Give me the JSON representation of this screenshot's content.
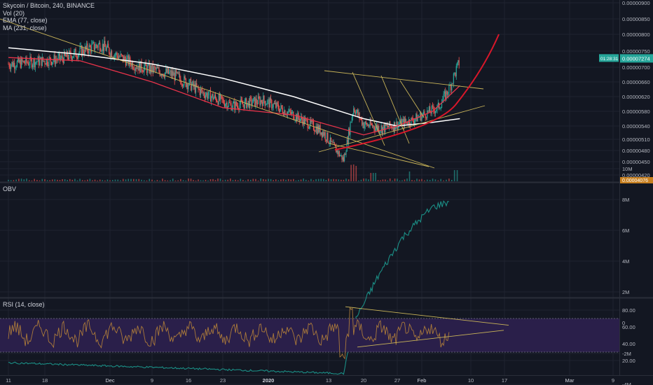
{
  "header": {
    "symbol_line": "Skycoin / Bitcoin, 240, BINANCE",
    "indicator_vol": "Vol (20)",
    "indicator_ema": "EMA (77, close)",
    "indicator_ma": "MA (231, close)"
  },
  "price_badge": {
    "price": "0.00007274",
    "countdown": "01:28:31",
    "low_marker": "0.00004076"
  },
  "colors": {
    "background": "#131722",
    "grid": "#1f2330",
    "text": "#b2b5be",
    "up": "#26a69a",
    "down": "#ef5350",
    "ema": "#e8334a",
    "ma": "#ffffff",
    "trendline": "#c9b458",
    "obv": "#1b8f86",
    "rsi": "#ab7a3a",
    "rsi_band": "#2a1f4a",
    "price_badge": "#26a69a"
  },
  "chart_data": [
    {
      "type": "candlestick",
      "title": "Skycoin / Bitcoin, 240, BINANCE",
      "ylim": [
        4.1e-06,
        9.2e-06
      ],
      "y_ticks": [
        "0.00000900",
        "0.00000850",
        "0.00000800",
        "0.00000750",
        "0.00000700",
        "0.00000660",
        "0.00000620",
        "0.00000580",
        "0.00000540",
        "0.00000510",
        "0.00000480",
        "0.00000450",
        "0.00000420"
      ],
      "x_tick_labels": [
        "11",
        "18",
        "Dec",
        "9",
        "16",
        "23",
        "2020",
        "13",
        "20",
        "27",
        "Feb",
        "10",
        "17",
        "Mar",
        "9"
      ],
      "series": [
        {
          "name": "EMA (77, close)",
          "x": [
            "Nov 11",
            "Nov 25",
            "Dec 9",
            "Dec 23",
            "Jan 6",
            "Jan 20",
            "Jan 27",
            "Feb 3",
            "Feb 8"
          ],
          "values": [
            7.3e-06,
            7.2e-06,
            6.6e-06,
            5.9e-06,
            5.7e-06,
            5.2e-06,
            5.4e-06,
            5.8e-06,
            6.5e-06
          ]
        },
        {
          "name": "MA (231, close)",
          "x": [
            "Nov 11",
            "Nov 25",
            "Dec 9",
            "Dec 23",
            "Jan 6",
            "Jan 20",
            "Jan 27",
            "Feb 3",
            "Feb 8"
          ],
          "values": [
            7.6e-06,
            7.4e-06,
            7.1e-06,
            6.7e-06,
            6.2e-06,
            5.6e-06,
            5.4e-06,
            5.5e-06,
            5.6e-06
          ]
        }
      ]
    },
    {
      "type": "line",
      "title": "OBV",
      "ylim": [
        -5,
        10
      ],
      "y_ticks": [
        "10M",
        "8M",
        "6M",
        "4M",
        "2M",
        "0",
        "-2M",
        "-4M"
      ],
      "series": [
        {
          "name": "OBV",
          "x": [
            "Nov 11",
            "Jan 16",
            "Jan 18",
            "Jan 23",
            "Jan 28",
            "Feb 3",
            "Feb 8"
          ],
          "values": [
            -2.6,
            -3.3,
            0,
            3,
            5.5,
            7.5,
            8.1
          ]
        }
      ]
    },
    {
      "type": "line",
      "title": "RSI (14, close)",
      "ylim": [
        12,
        88
      ],
      "y_ticks": [
        "80.00",
        "60.00",
        "40.00",
        "20.00"
      ],
      "bands": [
        70,
        30
      ],
      "series": [
        {
          "name": "RSI (14, close)",
          "x": [
            "Nov 11",
            "Jan 16",
            "Jan 18",
            "Feb 8"
          ],
          "values": [
            55,
            20,
            84,
            62
          ]
        }
      ]
    }
  ]
}
